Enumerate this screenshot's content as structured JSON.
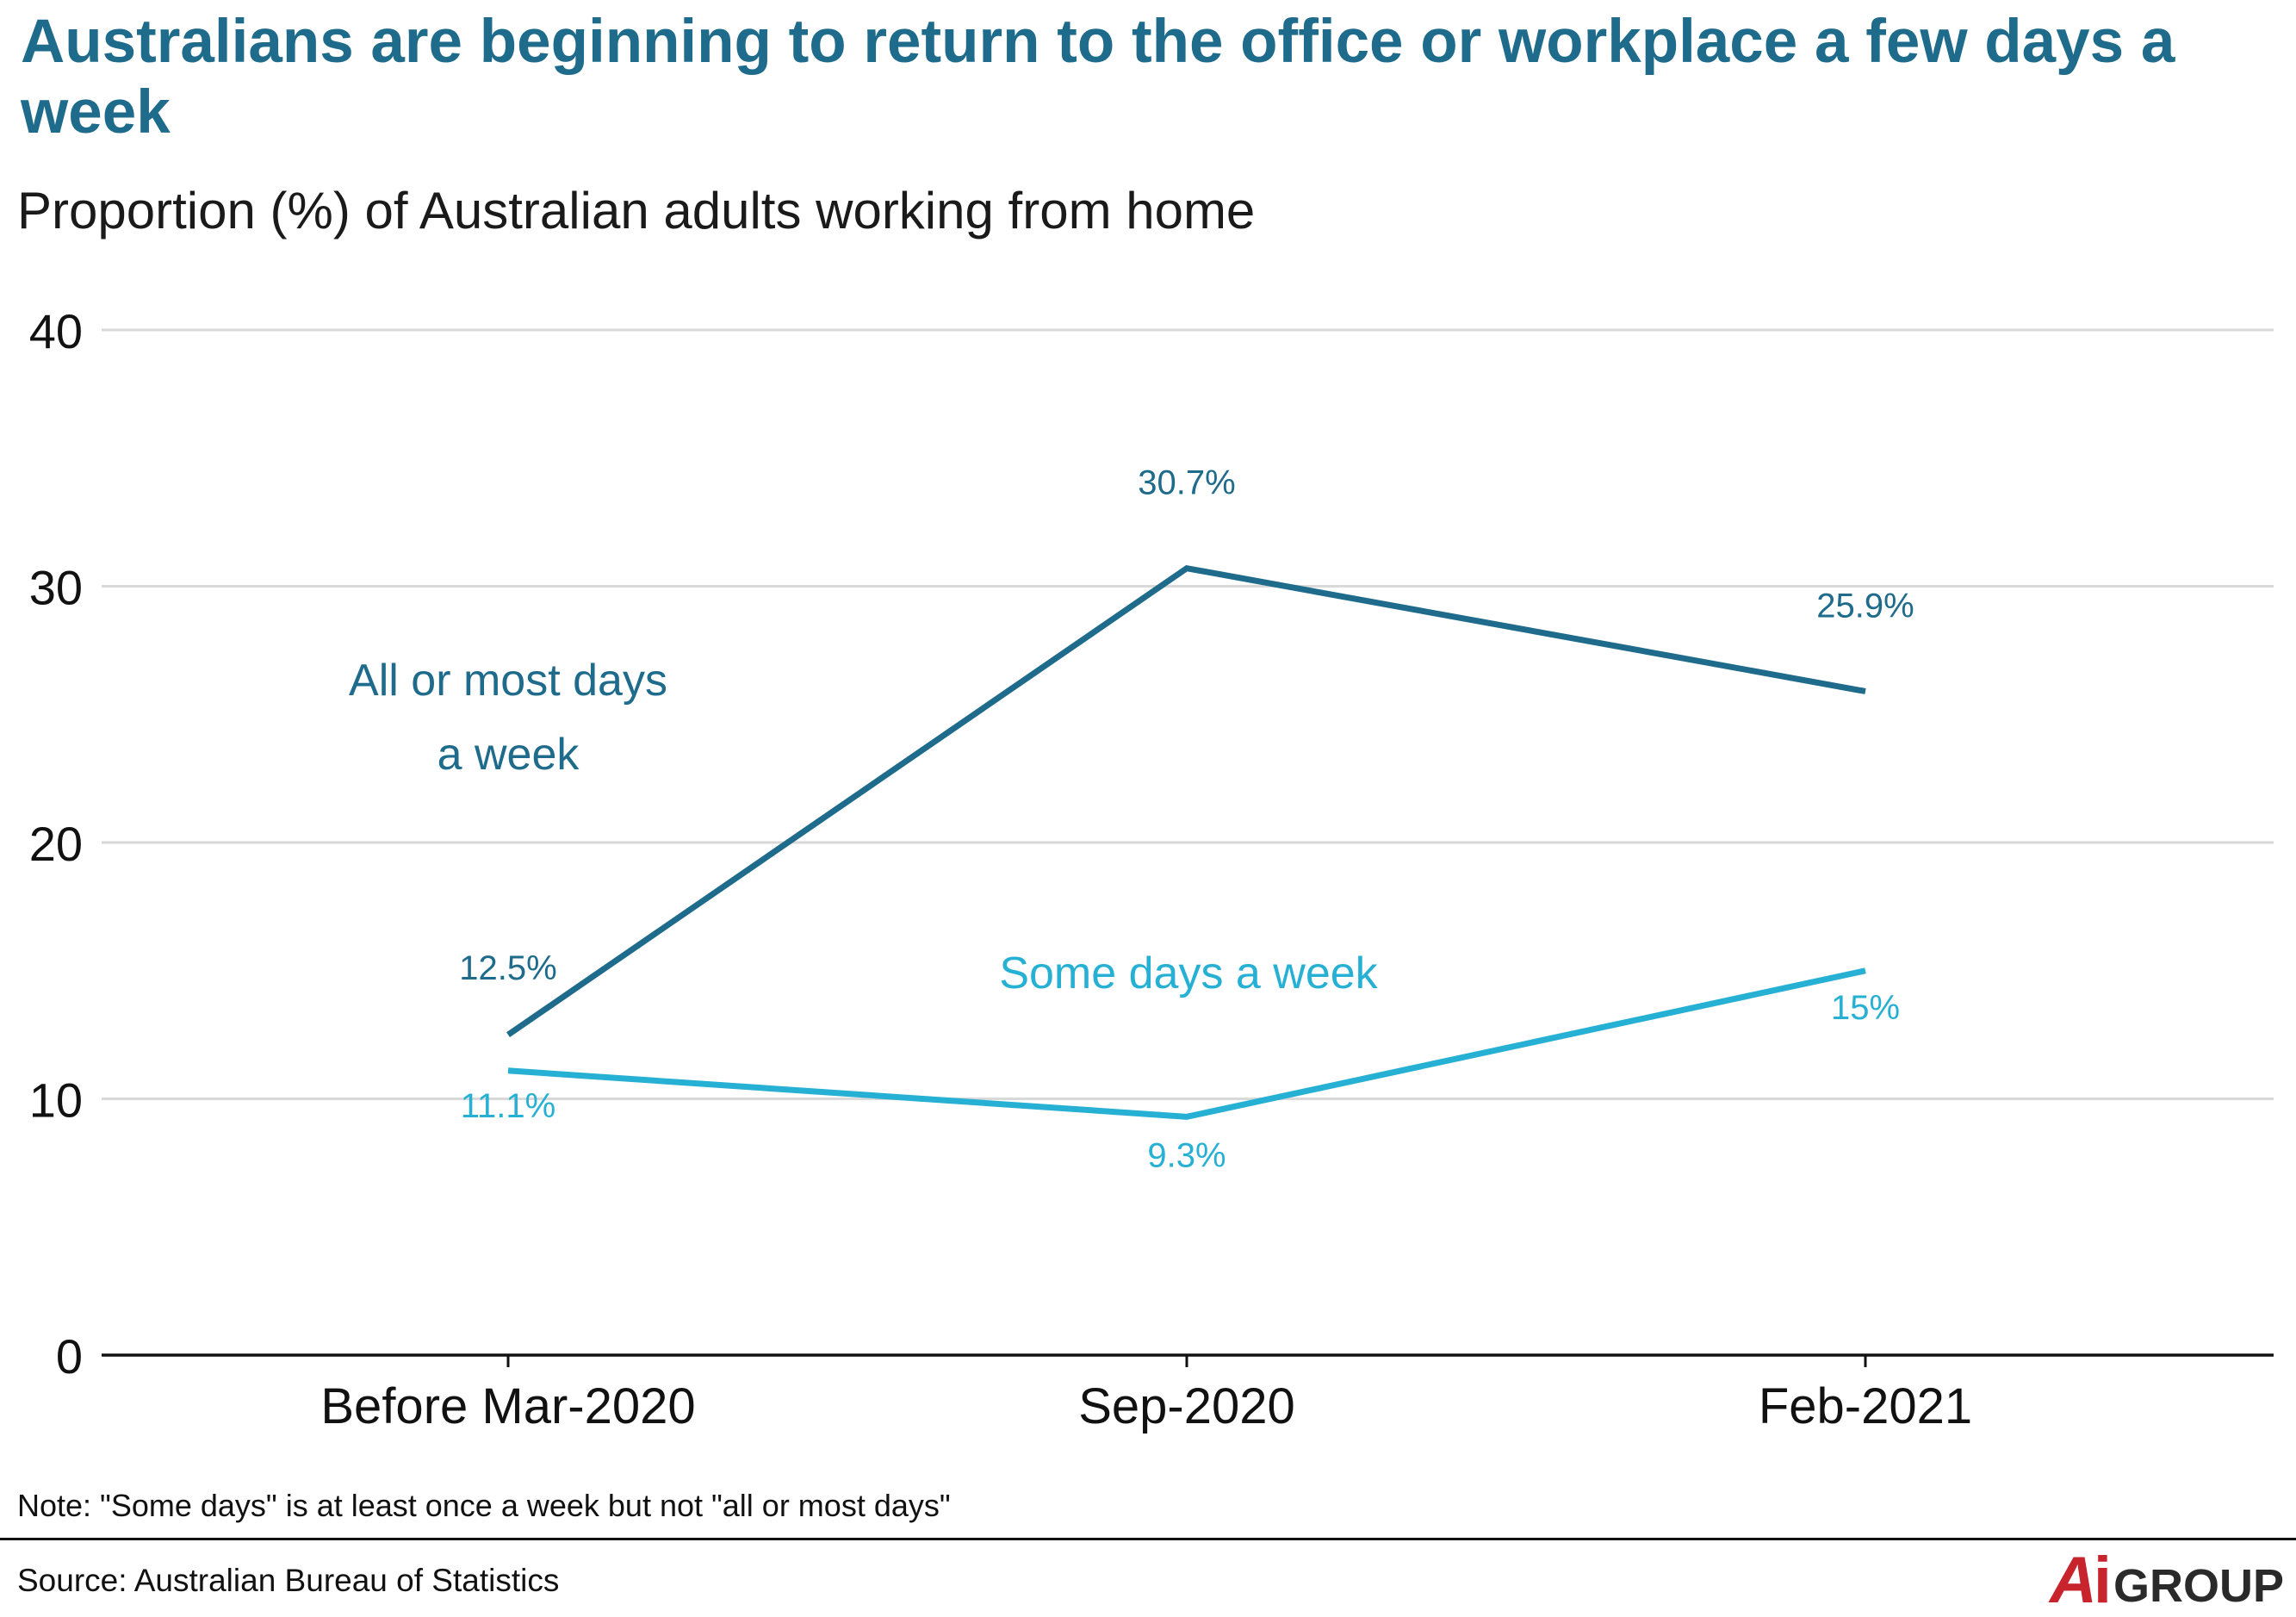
{
  "title": "Australians are beginning to return to the office or workplace a few days a week",
  "subtitle": "Proportion (%) of Australian adults working from home",
  "note": "Note: \"Some days\" is at least once a week but not \"all or most days\"",
  "source": "Source: Australian Bureau of Statistics",
  "logo": {
    "a": "A",
    "i": "i",
    "group": "GROUP",
    "text": "AiGROUP"
  },
  "colors": {
    "title": "#1e6b8c",
    "series_all_or_most": "#1e6b8c",
    "series_some_days": "#26b0d4",
    "grid": "#d9d9d9",
    "axis": "#111111",
    "logo_red": "#c8242d"
  },
  "chart_data": {
    "type": "line",
    "categories": [
      "Before Mar-2020",
      "Sep-2020",
      "Feb-2021"
    ],
    "ylim": [
      0,
      40
    ],
    "yticks": [
      0,
      10,
      20,
      30,
      40
    ],
    "grid": true,
    "xlabel": "",
    "ylabel": "",
    "series": [
      {
        "name": "All or most days a week",
        "values": [
          12.5,
          30.7,
          25.9
        ],
        "labels": [
          "12.5%",
          "30.7%",
          "25.9%"
        ],
        "color": "#1e6b8c"
      },
      {
        "name": "Some days a week",
        "values": [
          11.1,
          9.3,
          15
        ],
        "labels": [
          "11.1%",
          "9.3%",
          "15%"
        ],
        "color": "#26b0d4"
      }
    ]
  }
}
